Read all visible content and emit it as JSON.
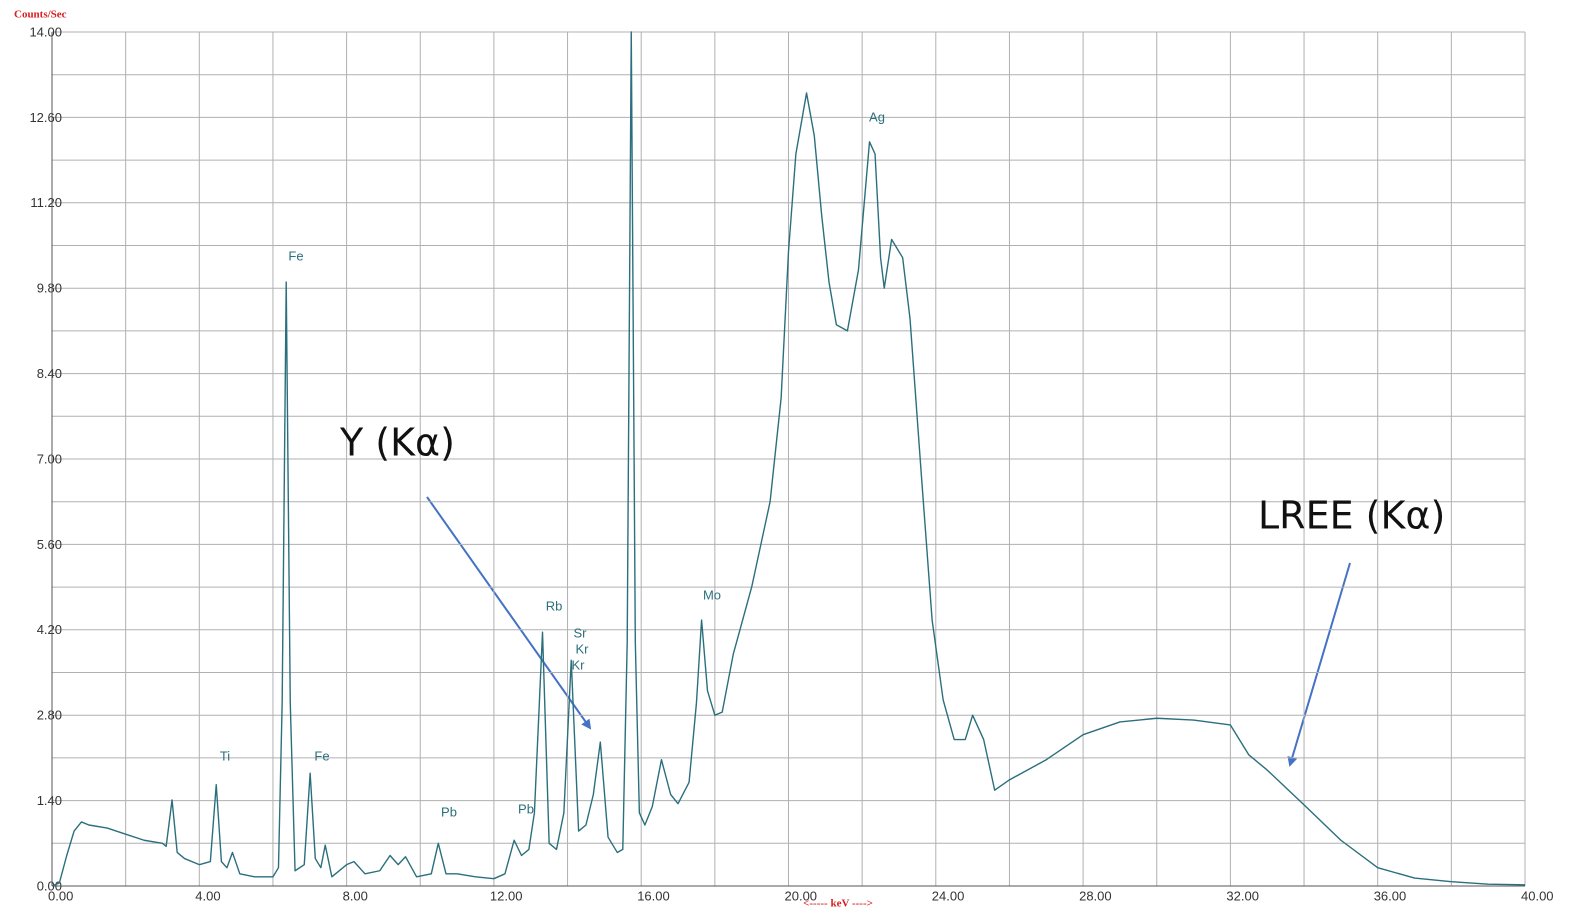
{
  "chart_data": {
    "type": "line",
    "ylabel": "Counts/Sec",
    "xlabel": "<----- keV ---->",
    "color": "#2b6f7d",
    "grid": true,
    "xlim": [
      0,
      40
    ],
    "ylim": [
      0,
      14
    ],
    "xticks": [
      {
        "value": 0,
        "label": "0.00"
      },
      {
        "value": 4,
        "label": "4.00"
      },
      {
        "value": 8,
        "label": "8.00"
      },
      {
        "value": 12,
        "label": "12.00"
      },
      {
        "value": 16,
        "label": "16.00"
      },
      {
        "value": 20,
        "label": "20.00"
      },
      {
        "value": 24,
        "label": "24.00"
      },
      {
        "value": 28,
        "label": "28.00"
      },
      {
        "value": 32,
        "label": "32.00"
      },
      {
        "value": 36,
        "label": "36.00"
      },
      {
        "value": 40,
        "label": "40.00"
      }
    ],
    "xminorticks": [
      2,
      6,
      10,
      14,
      18,
      22,
      26,
      30,
      34,
      38
    ],
    "yticks": [
      {
        "value": 0,
        "label": "0.00"
      },
      {
        "value": 1.4,
        "label": "1.40"
      },
      {
        "value": 2.8,
        "label": "2.80"
      },
      {
        "value": 4.2,
        "label": "4.20"
      },
      {
        "value": 5.6,
        "label": "5.60"
      },
      {
        "value": 7,
        "label": "7.00"
      },
      {
        "value": 8.4,
        "label": "8.40"
      },
      {
        "value": 9.8,
        "label": "9.80"
      },
      {
        "value": 11.2,
        "label": "11.20"
      },
      {
        "value": 12.6,
        "label": "12.60"
      },
      {
        "value": 14,
        "label": "14.00"
      }
    ],
    "yminorticks": [
      0.7,
      2.1,
      3.5,
      4.9,
      6.3,
      7.7,
      9.1,
      10.5,
      11.9,
      13.3
    ],
    "x": [
      0,
      0.2,
      0.4,
      0.6,
      0.8,
      1.0,
      1.5,
      2.0,
      2.5,
      3.0,
      3.1,
      3.26,
      3.4,
      3.6,
      4.0,
      4.3,
      4.46,
      4.6,
      4.75,
      4.9,
      5.1,
      5.5,
      6.0,
      6.15,
      6.25,
      6.36,
      6.47,
      6.6,
      6.85,
      7.01,
      7.15,
      7.3,
      7.42,
      7.6,
      8.0,
      8.2,
      8.5,
      8.9,
      9.18,
      9.4,
      9.6,
      9.9,
      10.3,
      10.49,
      10.7,
      11.0,
      11.5,
      12.0,
      12.3,
      12.55,
      12.75,
      12.95,
      13.1,
      13.32,
      13.5,
      13.7,
      13.9,
      14.1,
      14.3,
      14.5,
      14.7,
      14.89,
      15.1,
      15.35,
      15.5,
      15.62,
      15.73,
      15.84,
      15.95,
      16.1,
      16.3,
      16.55,
      16.8,
      17.0,
      17.3,
      17.5,
      17.64,
      17.8,
      18.0,
      18.2,
      18.5,
      19.0,
      19.5,
      19.8,
      20.0,
      20.2,
      20.49,
      20.7,
      20.9,
      21.1,
      21.3,
      21.6,
      21.9,
      22.2,
      22.35,
      22.5,
      22.6,
      22.8,
      23.1,
      23.3,
      23.6,
      23.9,
      24.2,
      24.5,
      24.8,
      25.0,
      25.3,
      25.6,
      26.0,
      27.0,
      28.0,
      29.0,
      30.0,
      31.0,
      32.0,
      32.5,
      33.0,
      34.0,
      35.0,
      36.0,
      37.0,
      38.0,
      39.0,
      40.0
    ],
    "values": [
      0,
      0.05,
      0.5,
      0.9,
      1.05,
      1.0,
      0.95,
      0.85,
      0.75,
      0.7,
      0.65,
      1.41,
      0.55,
      0.45,
      0.35,
      0.4,
      1.66,
      0.4,
      0.3,
      0.55,
      0.2,
      0.15,
      0.15,
      0.3,
      3,
      9.9,
      3,
      0.25,
      0.35,
      1.85,
      0.45,
      0.3,
      0.67,
      0.15,
      0.35,
      0.4,
      0.2,
      0.25,
      0.5,
      0.35,
      0.48,
      0.15,
      0.2,
      0.7,
      0.2,
      0.2,
      0.15,
      0.12,
      0.2,
      0.75,
      0.5,
      0.6,
      1.2,
      4.16,
      0.7,
      0.6,
      1.2,
      3.7,
      0.9,
      1.0,
      1.5,
      2.36,
      0.8,
      0.55,
      0.6,
      4,
      14,
      4,
      1.2,
      1.0,
      1.3,
      2.07,
      1.5,
      1.35,
      1.7,
      3,
      4.36,
      3.2,
      2.8,
      2.85,
      3.8,
      4.9,
      6.3,
      8.0,
      10.4,
      12.0,
      13.0,
      12.3,
      11.0,
      9.9,
      9.2,
      9.1,
      10.1,
      12.2,
      12.0,
      10.3,
      9.8,
      10.6,
      10.3,
      9.3,
      6.8,
      4.36,
      3.05,
      2.4,
      2.4,
      2.8,
      2.4,
      1.57,
      1.74,
      2.07,
      2.48,
      2.69,
      2.75,
      2.72,
      2.64,
      2.15,
      1.9,
      1.33,
      0.75,
      0.3,
      0.13,
      0.07,
      0.03,
      0.02
    ],
    "peak_labels": [
      "Ti",
      "Fe",
      "Fe",
      "Pb",
      "Pb",
      "Rb",
      "Sr",
      "Kr",
      "Kr",
      "Mo",
      "Ag"
    ],
    "annotations": [
      "Y (Kα)",
      "LREE (Kα)"
    ]
  }
}
